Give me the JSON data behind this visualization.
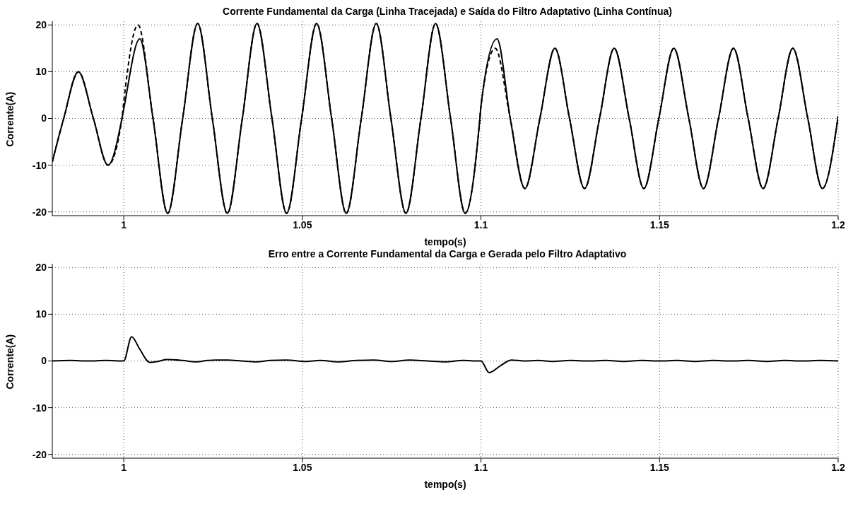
{
  "chart_data": [
    {
      "type": "line",
      "title": "Corrente Fundamental da Carga (Linha Tracejada) e Saída do Filtro Adaptativo (Linha Contínua)",
      "xlabel": "tempo(s)",
      "ylabel": "Corrente(A)",
      "xlim": [
        0.98,
        1.2
      ],
      "xticks": [
        1,
        1.05,
        1.1,
        1.15,
        1.2
      ],
      "ylim": [
        -20.8,
        20.8
      ],
      "yticks": [
        -20,
        -10,
        0,
        10,
        20
      ],
      "grid": true,
      "marker": "none",
      "series": [
        {
          "color": "#000000",
          "line_style": "dashed",
          "x": [
            0.98,
            0.9832,
            0.9873,
            0.9915,
            0.9956,
            0.9995,
            1.0,
            1.004,
            1.0082,
            1.0123,
            1.0165,
            1.0207,
            1.0248,
            1.029,
            1.0332,
            1.0373,
            1.0415,
            1.0456,
            1.0498,
            1.054,
            1.0582,
            1.0623,
            1.0665,
            1.0707,
            1.0748,
            1.079,
            1.0832,
            1.0873,
            1.0915,
            1.0956,
            1.0997,
            1.1,
            1.104,
            1.1082,
            1.1123,
            1.1165,
            1.1207,
            1.1248,
            1.129,
            1.1332,
            1.1373,
            1.1415,
            1.1456,
            1.1498,
            1.154,
            1.1582,
            1.1623,
            1.1665,
            1.1707,
            1.1748,
            1.179,
            1.1832,
            1.1873,
            1.1915,
            1.1956,
            1.2
          ],
          "values": [
            -9.3,
            0,
            10,
            0,
            -10,
            0,
            3.5,
            20,
            0,
            -20.3,
            0,
            20.3,
            0,
            -20.3,
            0,
            20.3,
            0,
            -20.3,
            0,
            20.3,
            0,
            -20.3,
            0,
            20.3,
            0,
            -20.3,
            0,
            20.3,
            0,
            -20.3,
            0,
            2.6,
            15,
            0,
            -15,
            0,
            15,
            0,
            -15,
            0,
            15,
            0,
            -15,
            0,
            15,
            0,
            -15,
            0,
            15,
            0,
            -15,
            0,
            15,
            0,
            -15,
            0.5
          ]
        },
        {
          "color": "#000000",
          "line_style": "solid",
          "x": [
            0.98,
            0.9832,
            0.9873,
            0.9915,
            0.9956,
            0.9995,
            1.0,
            1.0045,
            1.0082,
            1.0123,
            1.0165,
            1.0207,
            1.0248,
            1.029,
            1.0332,
            1.0373,
            1.0415,
            1.0456,
            1.0498,
            1.054,
            1.0582,
            1.0623,
            1.0665,
            1.0707,
            1.0748,
            1.079,
            1.0832,
            1.0873,
            1.0915,
            1.0956,
            1.0997,
            1.1,
            1.1045,
            1.1082,
            1.1123,
            1.1165,
            1.1207,
            1.1248,
            1.129,
            1.1332,
            1.1373,
            1.1415,
            1.1456,
            1.1498,
            1.154,
            1.1582,
            1.1623,
            1.1665,
            1.1707,
            1.1748,
            1.179,
            1.1832,
            1.1873,
            1.1915,
            1.1956,
            1.2
          ],
          "values": [
            -9.3,
            0,
            10,
            0,
            -10,
            0,
            2,
            17,
            0,
            -20.3,
            0,
            20.3,
            0,
            -20.3,
            0,
            20.3,
            0,
            -20.3,
            0,
            20.3,
            0,
            -20.3,
            0,
            20.3,
            0,
            -20.3,
            0,
            20.3,
            0,
            -20.3,
            0,
            2.6,
            17,
            0,
            -15,
            0,
            15,
            0,
            -15,
            0,
            15,
            0,
            -15,
            0,
            15,
            0,
            -15,
            0,
            15,
            0,
            -15,
            0,
            15,
            0,
            -15,
            0.5
          ]
        }
      ]
    },
    {
      "type": "line",
      "title": "Erro entre a Corrente Fundamental da Carga e Gerada pelo Filtro Adaptativo",
      "xlabel": "tempo(s)",
      "ylabel": "Corrente(A)",
      "xlim": [
        0.98,
        1.2
      ],
      "xticks": [
        1,
        1.05,
        1.1,
        1.15,
        1.2
      ],
      "ylim": [
        -20.8,
        20.8
      ],
      "yticks": [
        -20,
        -10,
        0,
        10,
        20
      ],
      "grid": true,
      "marker": "none",
      "series": [
        {
          "color": "#000000",
          "line_style": "solid",
          "x": [
            0.98,
            0.985,
            0.99,
            0.995,
            1.0,
            1.0022,
            1.0045,
            1.0073,
            1.0095,
            1.0121,
            1.0165,
            1.0202,
            1.0235,
            1.0257,
            1.029,
            1.033,
            1.037,
            1.041,
            1.0455,
            1.051,
            1.055,
            1.06,
            1.065,
            1.07,
            1.075,
            1.08,
            1.085,
            1.09,
            1.095,
            1.0995,
            1.1,
            1.1023,
            1.1055,
            1.1085,
            1.112,
            1.116,
            1.12,
            1.125,
            1.13,
            1.135,
            1.14,
            1.145,
            1.15,
            1.155,
            1.16,
            1.165,
            1.17,
            1.175,
            1.18,
            1.185,
            1.19,
            1.195,
            1.2
          ],
          "values": [
            0,
            0.1,
            0,
            0.1,
            0,
            5.2,
            2.5,
            -0.3,
            -0.1,
            0.3,
            0.1,
            -0.2,
            0.1,
            0.2,
            0.2,
            0,
            -0.2,
            0.1,
            0.2,
            -0.1,
            0.1,
            -0.2,
            0.1,
            0.2,
            -0.1,
            0.2,
            0,
            -0.2,
            0.1,
            0,
            0,
            -2.5,
            -1,
            0.2,
            0,
            0.1,
            -0.1,
            0.1,
            0,
            0.1,
            -0.1,
            0.1,
            0,
            0.1,
            -0.1,
            0.1,
            0,
            0.1,
            -0.1,
            0.1,
            0,
            0.1,
            0
          ]
        }
      ]
    }
  ]
}
